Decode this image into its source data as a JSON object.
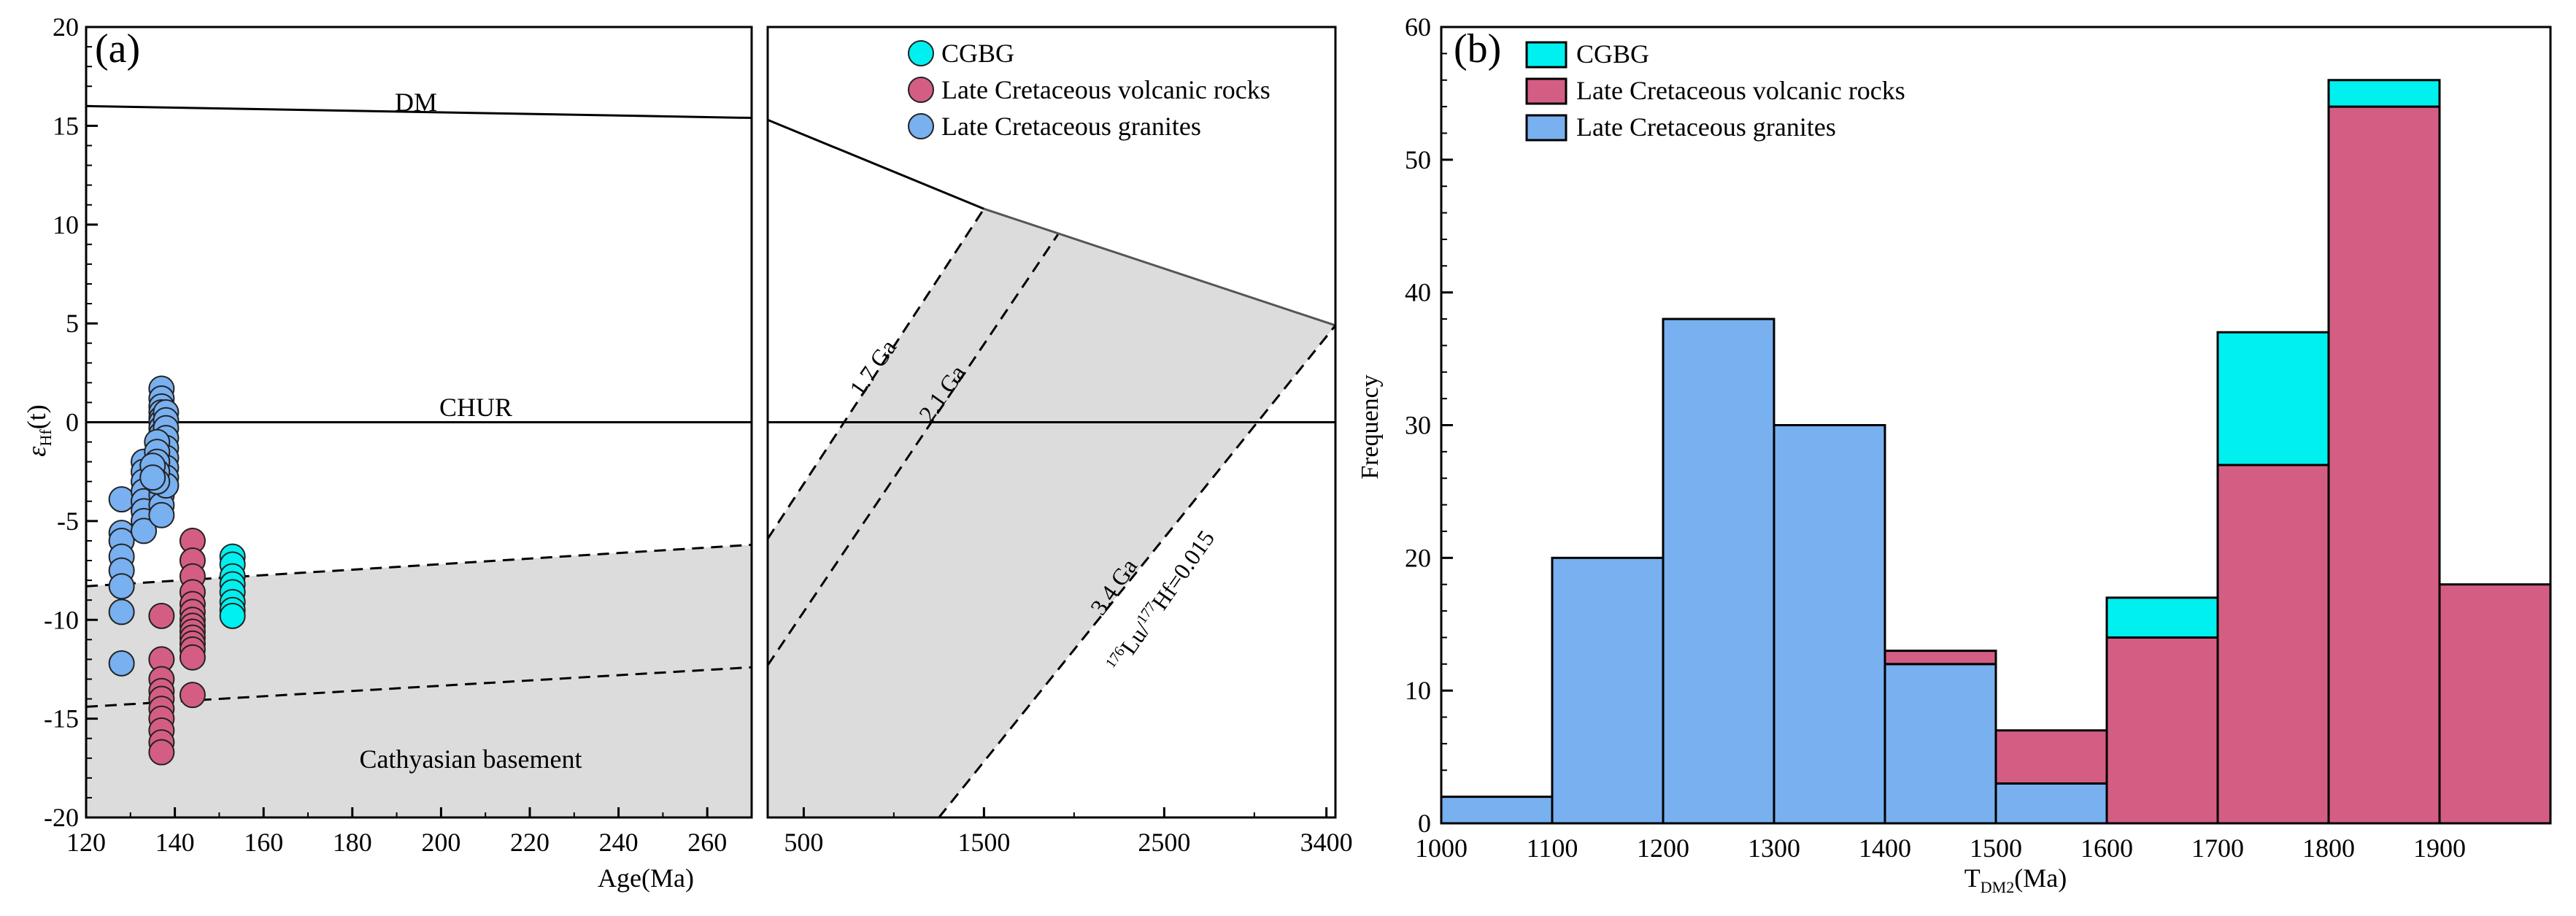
{
  "colors": {
    "cgbg": "#00f0ef",
    "volcanic": "#d45e83",
    "granite": "#78b0f0",
    "basement_fill": "#dcdcdc"
  },
  "chart_data": [
    {
      "panel_label": "(a)",
      "type": "scatter",
      "xlabel": "Age(Ma)",
      "ylabel": "εHf(t)",
      "xlim": [
        120,
        270
      ],
      "ylim": [
        -20,
        20
      ],
      "x_ticks": [
        "120",
        "140",
        "160",
        "180",
        "200",
        "220",
        "240",
        "260"
      ],
      "y_ticks": [
        "20",
        "15",
        "10",
        "5",
        "0",
        "-5",
        "-10",
        "-15",
        "-20"
      ],
      "grid": false,
      "reference_lines": [
        {
          "label": "DM",
          "x": [
            120,
            270
          ],
          "y": [
            16.0,
            15.4
          ]
        },
        {
          "label": "CHUR",
          "x": [
            120,
            270
          ],
          "y": [
            0,
            0
          ]
        }
      ],
      "basement_field": {
        "label": "Cathyasian basement",
        "upper": {
          "x": [
            120,
            270
          ],
          "y": [
            -8.3,
            -6.2
          ]
        },
        "lower": {
          "x": [
            120,
            270
          ],
          "y": [
            -14.4,
            -12.4
          ]
        }
      },
      "series": [
        {
          "name": "CGBG",
          "x": [
            153,
            153,
            153,
            153,
            153,
            153,
            153,
            153
          ],
          "y": [
            -6.8,
            -7.2,
            -7.8,
            -8.2,
            -8.6,
            -9.1,
            -9.5,
            -9.8
          ]
        },
        {
          "name": "Late Cretaceous volcanic rocks",
          "x": [
            137,
            137,
            137,
            137,
            137,
            137,
            137,
            137,
            137,
            137,
            144,
            144,
            144,
            144,
            144,
            144,
            144,
            144,
            144,
            144,
            144,
            144,
            144,
            144
          ],
          "y": [
            -9.8,
            -12.0,
            -13.0,
            -13.6,
            -14.0,
            -14.5,
            -15.0,
            -15.6,
            -16.2,
            -16.7,
            -6.0,
            -7.0,
            -7.8,
            -8.6,
            -9.2,
            -9.6,
            -10.0,
            -10.3,
            -10.6,
            -10.9,
            -11.2,
            -11.5,
            -11.9,
            -13.8
          ]
        },
        {
          "name": "Late Cretaceous granites",
          "x": [
            128,
            128,
            128,
            128,
            128,
            128,
            128,
            128,
            133,
            133,
            133,
            133,
            133,
            133,
            133,
            133,
            137,
            137,
            137,
            137,
            137,
            137,
            137,
            137,
            137,
            137,
            137,
            137,
            137,
            137,
            137,
            137,
            137,
            137,
            137,
            137,
            138,
            138,
            138,
            138,
            138,
            138,
            138,
            138,
            138,
            136,
            136,
            136,
            136,
            136,
            135,
            135
          ],
          "y": [
            -3.9,
            -5.6,
            -6.0,
            -6.8,
            -7.5,
            -8.3,
            -9.6,
            -12.2,
            -2.0,
            -2.5,
            -3.0,
            -3.5,
            -4.0,
            -4.5,
            -5.0,
            -5.5,
            1.7,
            1.2,
            0.8,
            0.5,
            0.2,
            0.0,
            -0.3,
            -0.6,
            -0.9,
            -1.2,
            -1.5,
            -1.8,
            -2.1,
            -2.4,
            -2.7,
            -3.0,
            -3.3,
            -3.7,
            -4.2,
            -4.7,
            0.5,
            0.1,
            -0.3,
            -0.8,
            -1.3,
            -1.8,
            -2.3,
            -2.8,
            -3.2,
            -1.0,
            -1.5,
            -2.0,
            -2.5,
            -3.0,
            -2.2,
            -2.8
          ]
        }
      ]
    },
    {
      "panel_label": "",
      "type": "line",
      "xlim": [
        300,
        3450
      ],
      "ylim": [
        -20,
        20
      ],
      "x_ticks": [
        "500",
        "1500",
        "2500",
        "3400"
      ],
      "legend_position": "top",
      "legend": [
        "CGBG",
        "Late Cretaceous volcanic rocks",
        "Late Cretaceous granites"
      ],
      "reference_lines": [
        {
          "label": "",
          "x": [
            300,
            1500
          ],
          "y": [
            15.3,
            10.8
          ]
        },
        {
          "label": "",
          "x": [
            1500,
            3450
          ],
          "y": [
            10.8,
            4.9
          ]
        },
        {
          "label": "CHUR",
          "x": [
            300,
            3450
          ],
          "y": [
            0,
            0
          ]
        },
        {
          "label": "1.7 Ga",
          "x": [
            300,
            1500
          ],
          "y": [
            -5.9,
            10.8
          ]
        },
        {
          "label": "2.1 Ga",
          "x": [
            300,
            1910
          ],
          "y": [
            -12.3,
            9.5
          ]
        },
        {
          "label": "3.4 Ga",
          "x": [
            1250,
            3450
          ],
          "y": [
            -20,
            4.9
          ]
        }
      ],
      "line_labels": [
        "1.7 Ga",
        "2.1 Ga",
        "3.4 Ga"
      ],
      "lu_hf_prefix": "176",
      "lu_hf_mid": "Lu/",
      "lu_hf_sup2": "177",
      "lu_hf_suffix": "Hf=0.015",
      "shaded_field": "between 1.7 Ga and 3.4 Ga evolution lines, bounded above by DM"
    },
    {
      "panel_label": "(b)",
      "type": "bar",
      "stacked": true,
      "xlabel": "TDM2(Ma)",
      "ylabel": "Frequency",
      "xlim": [
        1000,
        2000
      ],
      "ylim": [
        0,
        60
      ],
      "x_ticks": [
        "1000",
        "1100",
        "1200",
        "1300",
        "1400",
        "1500",
        "1600",
        "1700",
        "1800",
        "1900"
      ],
      "y_ticks": [
        "0",
        "10",
        "20",
        "30",
        "40",
        "50",
        "60"
      ],
      "bin_width": 100,
      "bins": [
        1000,
        1100,
        1200,
        1300,
        1400,
        1500,
        1600,
        1700,
        1800,
        1900
      ],
      "legend_position": "top-left",
      "series": [
        {
          "name": "Late Cretaceous granites",
          "values": [
            2,
            20,
            38,
            30,
            12,
            3,
            0,
            0,
            0,
            0
          ]
        },
        {
          "name": "Late Cretaceous volcanic rocks",
          "values": [
            0,
            0,
            0,
            0,
            1,
            4,
            14,
            27,
            54,
            18
          ]
        },
        {
          "name": "CGBG",
          "values": [
            0,
            0,
            0,
            0,
            0,
            0,
            3,
            10,
            2,
            0
          ]
        }
      ]
    }
  ]
}
